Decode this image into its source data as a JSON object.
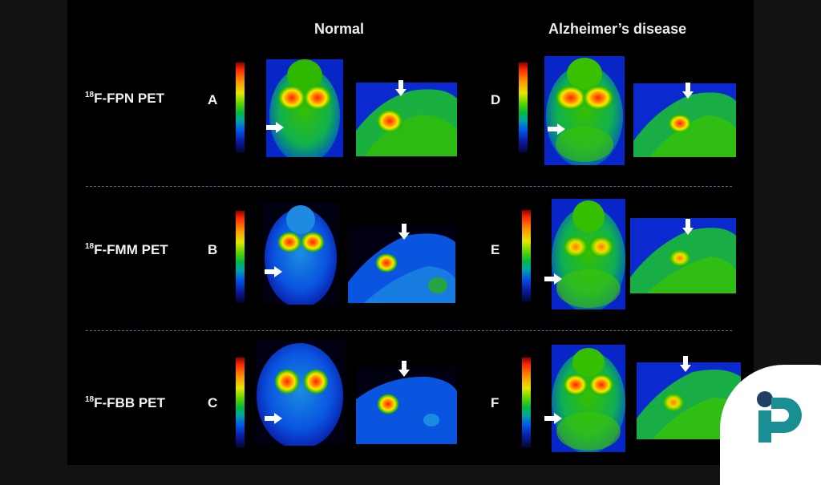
{
  "columns": {
    "normal": "Normal",
    "alzheimers": "Alzheimer’s disease"
  },
  "rows": [
    {
      "sup": "18",
      "tracer": "F-FPN PET",
      "left_panel": "A",
      "right_panel": "D"
    },
    {
      "sup": "18",
      "tracer": "F-FMM PET",
      "left_panel": "B",
      "right_panel": "E"
    },
    {
      "sup": "18",
      "tracer": "F-FBB PET",
      "left_panel": "C",
      "right_panel": "F"
    }
  ],
  "colors": {
    "background": "#000000",
    "divider": "#4f6f93",
    "logo_teal": "#1a8f93",
    "logo_navy": "#1f3f63"
  },
  "icons": {
    "arrow": "white-arrow-icon",
    "logo": "brand-logo-icon"
  }
}
